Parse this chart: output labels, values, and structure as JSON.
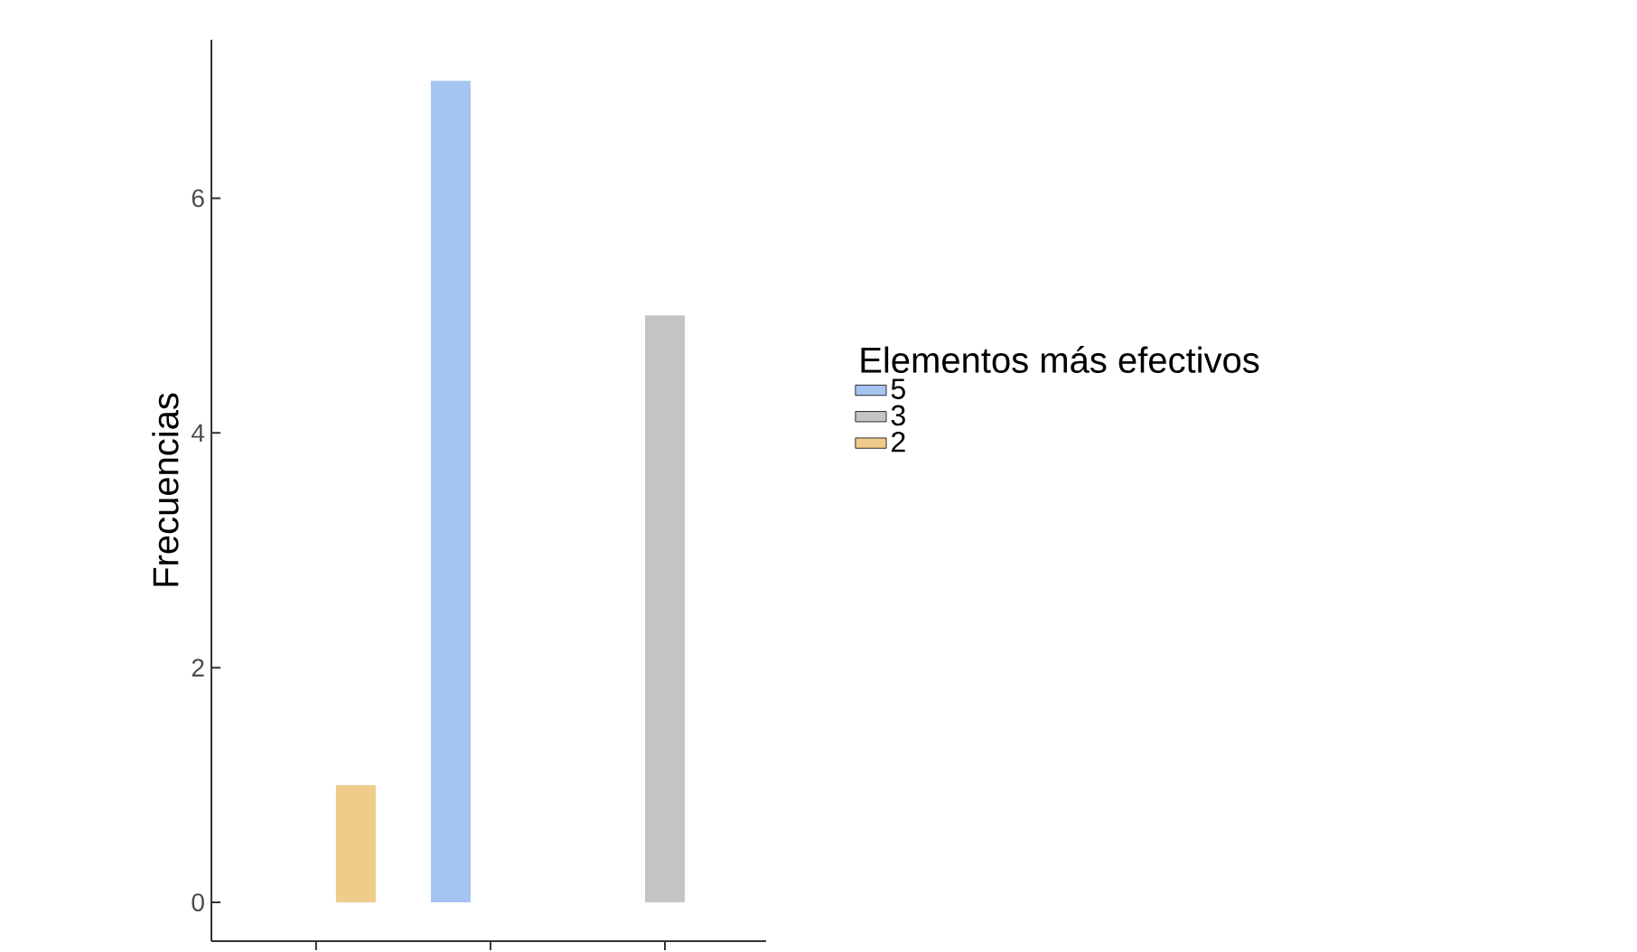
{
  "chart_data": {
    "type": "bar",
    "ylabel": "Frecuencias",
    "legend_title": "Elementos más efectivos",
    "categories": [
      null,
      null,
      null
    ],
    "series": [
      {
        "name": "5",
        "color": "#a6c4f0",
        "values": [
          null,
          7,
          null
        ]
      },
      {
        "name": "3",
        "color": "#c4c4c4",
        "values": [
          null,
          null,
          5
        ]
      },
      {
        "name": "2",
        "color": "#f0cc8a",
        "values": [
          1,
          null,
          null
        ]
      }
    ],
    "ylim": [
      -0.33,
      7.35
    ],
    "yticks": [
      0,
      2,
      4,
      6
    ],
    "grid": false,
    "legend": "right",
    "tick_labels": "y"
  }
}
